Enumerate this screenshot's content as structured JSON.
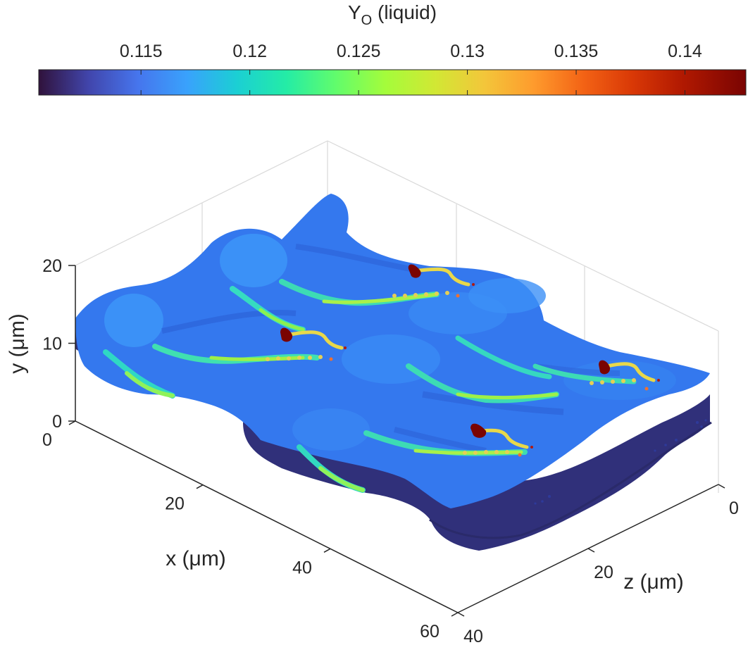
{
  "chart_data": {
    "type": "surface3d",
    "colorbar": {
      "title_main": "Y",
      "title_sub": "O",
      "title_suffix": " (liquid)",
      "range": [
        0.1103,
        0.1428
      ],
      "ticks": [
        0.115,
        0.12,
        0.125,
        0.13,
        0.135,
        0.14
      ],
      "tick_labels": [
        "0.115",
        "0.12",
        "0.125",
        "0.13",
        "0.135",
        "0.14"
      ],
      "colormap": "turbo",
      "location": "top"
    },
    "axes": {
      "x": {
        "label": "x (μm)",
        "range": [
          0,
          60
        ],
        "ticks": [
          0,
          20,
          40,
          60
        ],
        "tick_labels": [
          "0",
          "20",
          "40",
          "60"
        ]
      },
      "y": {
        "label": "y (μm)",
        "range": [
          0,
          20
        ],
        "ticks": [
          0,
          10,
          20
        ],
        "tick_labels": [
          "0",
          "10",
          "20"
        ]
      },
      "z": {
        "label": "z (μm)",
        "range": [
          0,
          40
        ],
        "ticks": [
          0,
          20,
          40
        ],
        "tick_labels": [
          "0",
          "20",
          "40"
        ]
      }
    },
    "grid": false,
    "box": true,
    "surface": {
      "base_value": 0.1145,
      "edge_value": 0.1118,
      "channel_value_range": [
        0.119,
        0.124
      ],
      "droplet_trail_value_range": [
        0.127,
        0.131
      ],
      "droplet_value": 0.141
    }
  }
}
